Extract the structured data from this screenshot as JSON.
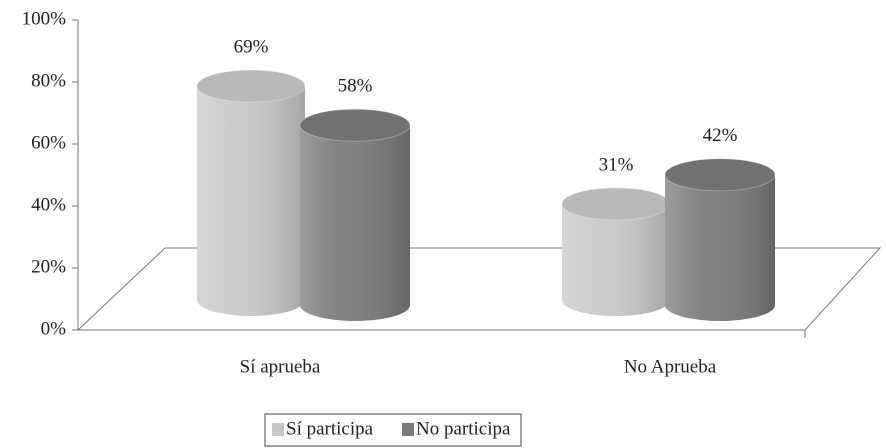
{
  "chart_data": {
    "type": "bar3d_cylinder",
    "categories": [
      "Sí aprueba",
      "No Aprueba"
    ],
    "series": [
      {
        "name": "Sí participa",
        "color": "#c9c9c9",
        "values": [
          69,
          31
        ],
        "value_labels": [
          "69%",
          "31%"
        ]
      },
      {
        "name": "No participa",
        "color": "#7b7b7b",
        "values": [
          58,
          42
        ],
        "value_labels": [
          "58%",
          "42%"
        ]
      }
    ],
    "ylim": [
      0,
      100
    ],
    "yticks": [
      {
        "value": 0,
        "label": "0%"
      },
      {
        "value": 20,
        "label": "20%"
      },
      {
        "value": 40,
        "label": "40%"
      },
      {
        "value": 60,
        "label": "60%"
      },
      {
        "value": 80,
        "label": "80%"
      },
      {
        "value": 100,
        "label": "100%"
      }
    ],
    "legend": "bottom"
  }
}
